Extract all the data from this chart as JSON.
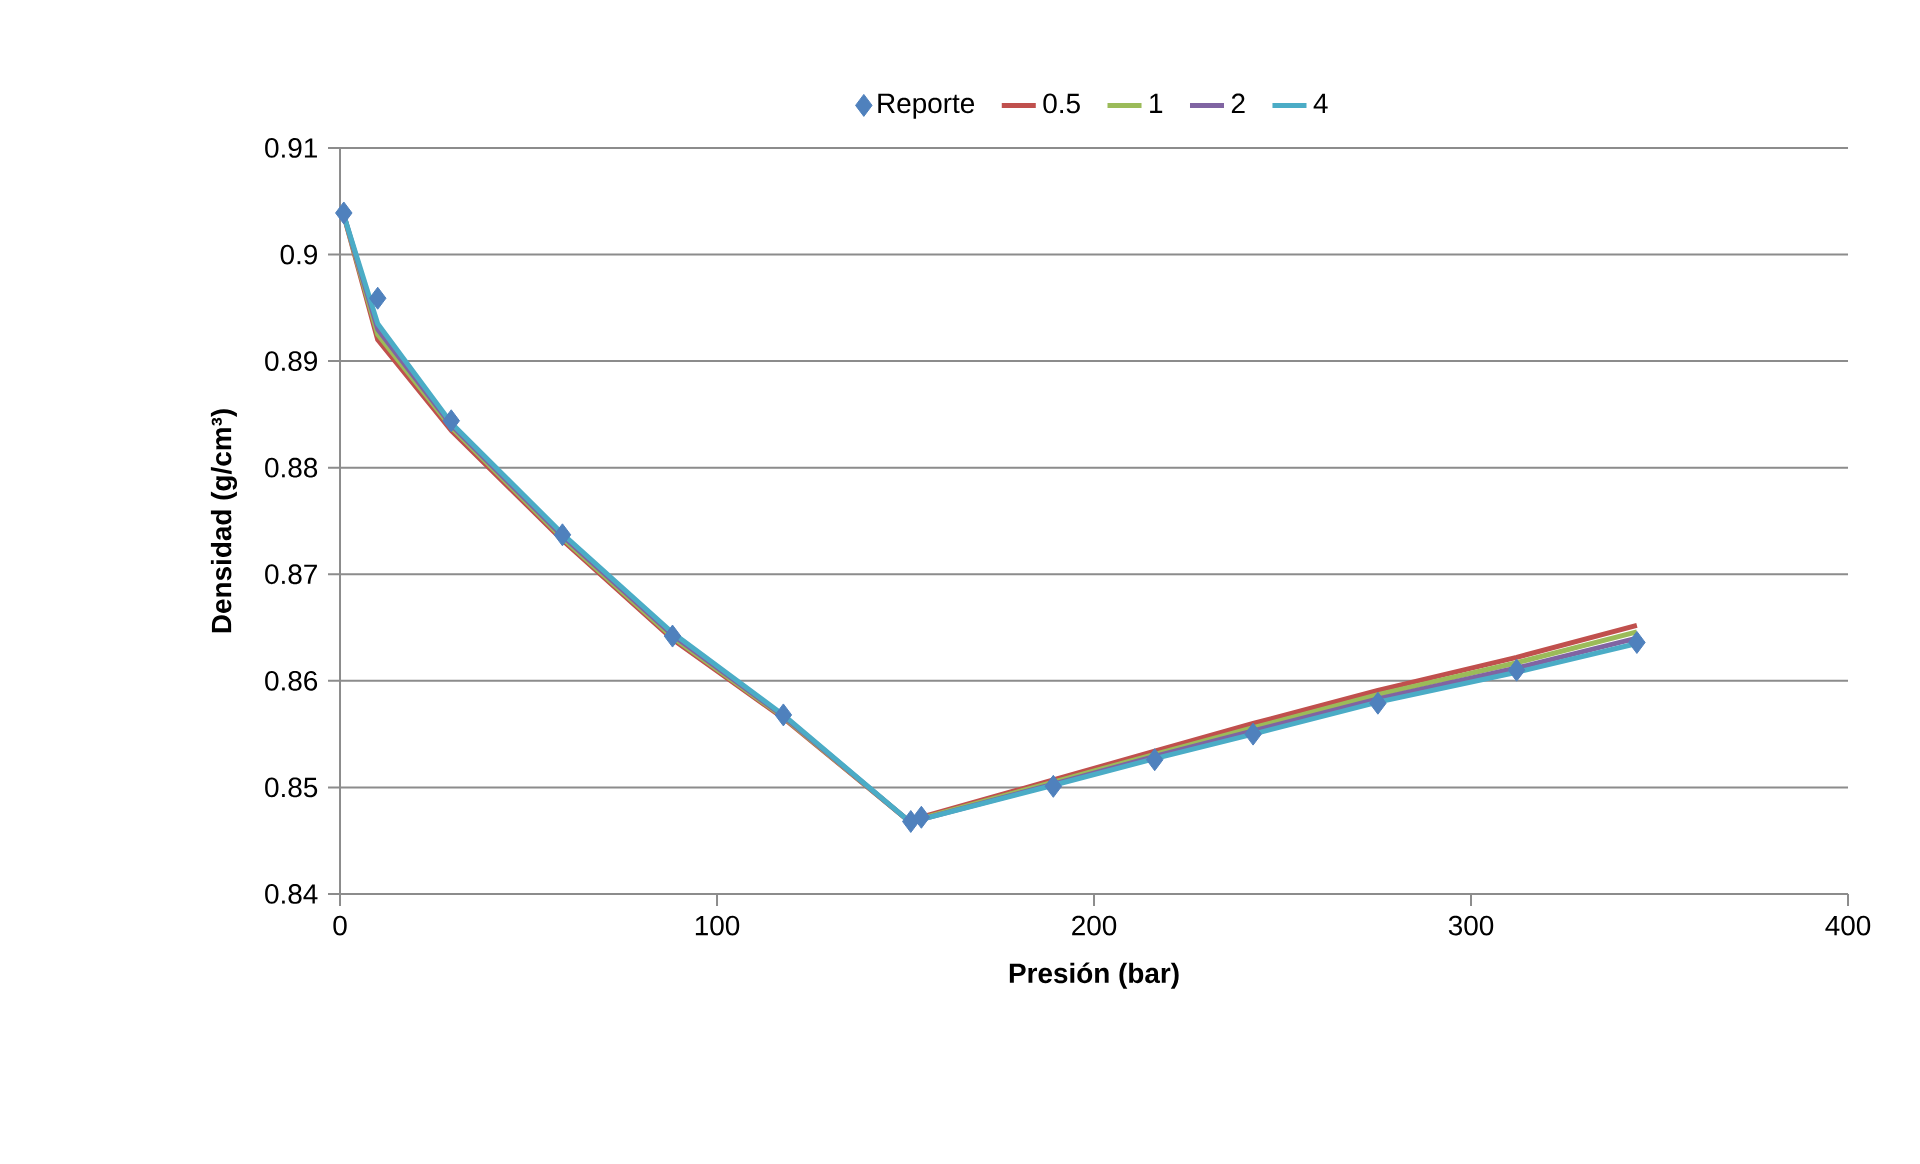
{
  "chart_data": {
    "type": "line",
    "xlabel": "Presión (bar)",
    "ylabel": "Densidad (g/cm³)",
    "x": [
      1,
      10,
      29.5,
      59,
      88.2,
      117.6,
      151.4,
      154.2,
      189.2,
      216.1,
      242.2,
      275.3,
      312.1,
      344
    ],
    "series": [
      {
        "name": "Reporte",
        "type": "scatter",
        "marker": "diamond",
        "color": "#4f81bd",
        "values": [
          0.9039,
          0.8959,
          0.8844,
          0.8737,
          0.8642,
          0.8568,
          0.8468,
          0.8472,
          0.8501,
          0.8526,
          0.855,
          0.8579,
          0.861,
          0.8636
        ]
      },
      {
        "name": "0.5",
        "marker": "none",
        "color": "#c0504d",
        "values": [
          0.9037,
          0.892,
          0.8835,
          0.8732,
          0.8639,
          0.8565,
          0.8467,
          0.8472,
          0.8507,
          0.8534,
          0.856,
          0.8591,
          0.8622,
          0.8652
        ]
      },
      {
        "name": "1",
        "marker": "none",
        "color": "#9bbb59",
        "values": [
          0.9037,
          0.8925,
          0.8838,
          0.8734,
          0.8641,
          0.8566,
          0.8467,
          0.8471,
          0.8505,
          0.8531,
          0.8556,
          0.8587,
          0.8617,
          0.8646
        ]
      },
      {
        "name": "2",
        "marker": "none",
        "color": "#8064a2",
        "values": [
          0.9037,
          0.893,
          0.884,
          0.8736,
          0.8643,
          0.8567,
          0.8467,
          0.847,
          0.8503,
          0.8529,
          0.8553,
          0.8583,
          0.8612,
          0.864
        ]
      },
      {
        "name": "4",
        "marker": "none",
        "color": "#4bacc6",
        "values": [
          0.9037,
          0.8935,
          0.8842,
          0.8738,
          0.8645,
          0.8568,
          0.8467,
          0.847,
          0.8502,
          0.8527,
          0.855,
          0.858,
          0.8608,
          0.8635
        ]
      }
    ],
    "xlim": [
      0,
      400
    ],
    "xticks": [
      0,
      100,
      200,
      300,
      400
    ],
    "ylim": [
      0.84,
      0.91
    ],
    "yticks": [
      0.84,
      0.85,
      0.86,
      0.87,
      0.88,
      0.89,
      {
        "value": 0.9,
        "label": "0.9"
      },
      0.91
    ],
    "grid": "y",
    "legend": "top"
  }
}
